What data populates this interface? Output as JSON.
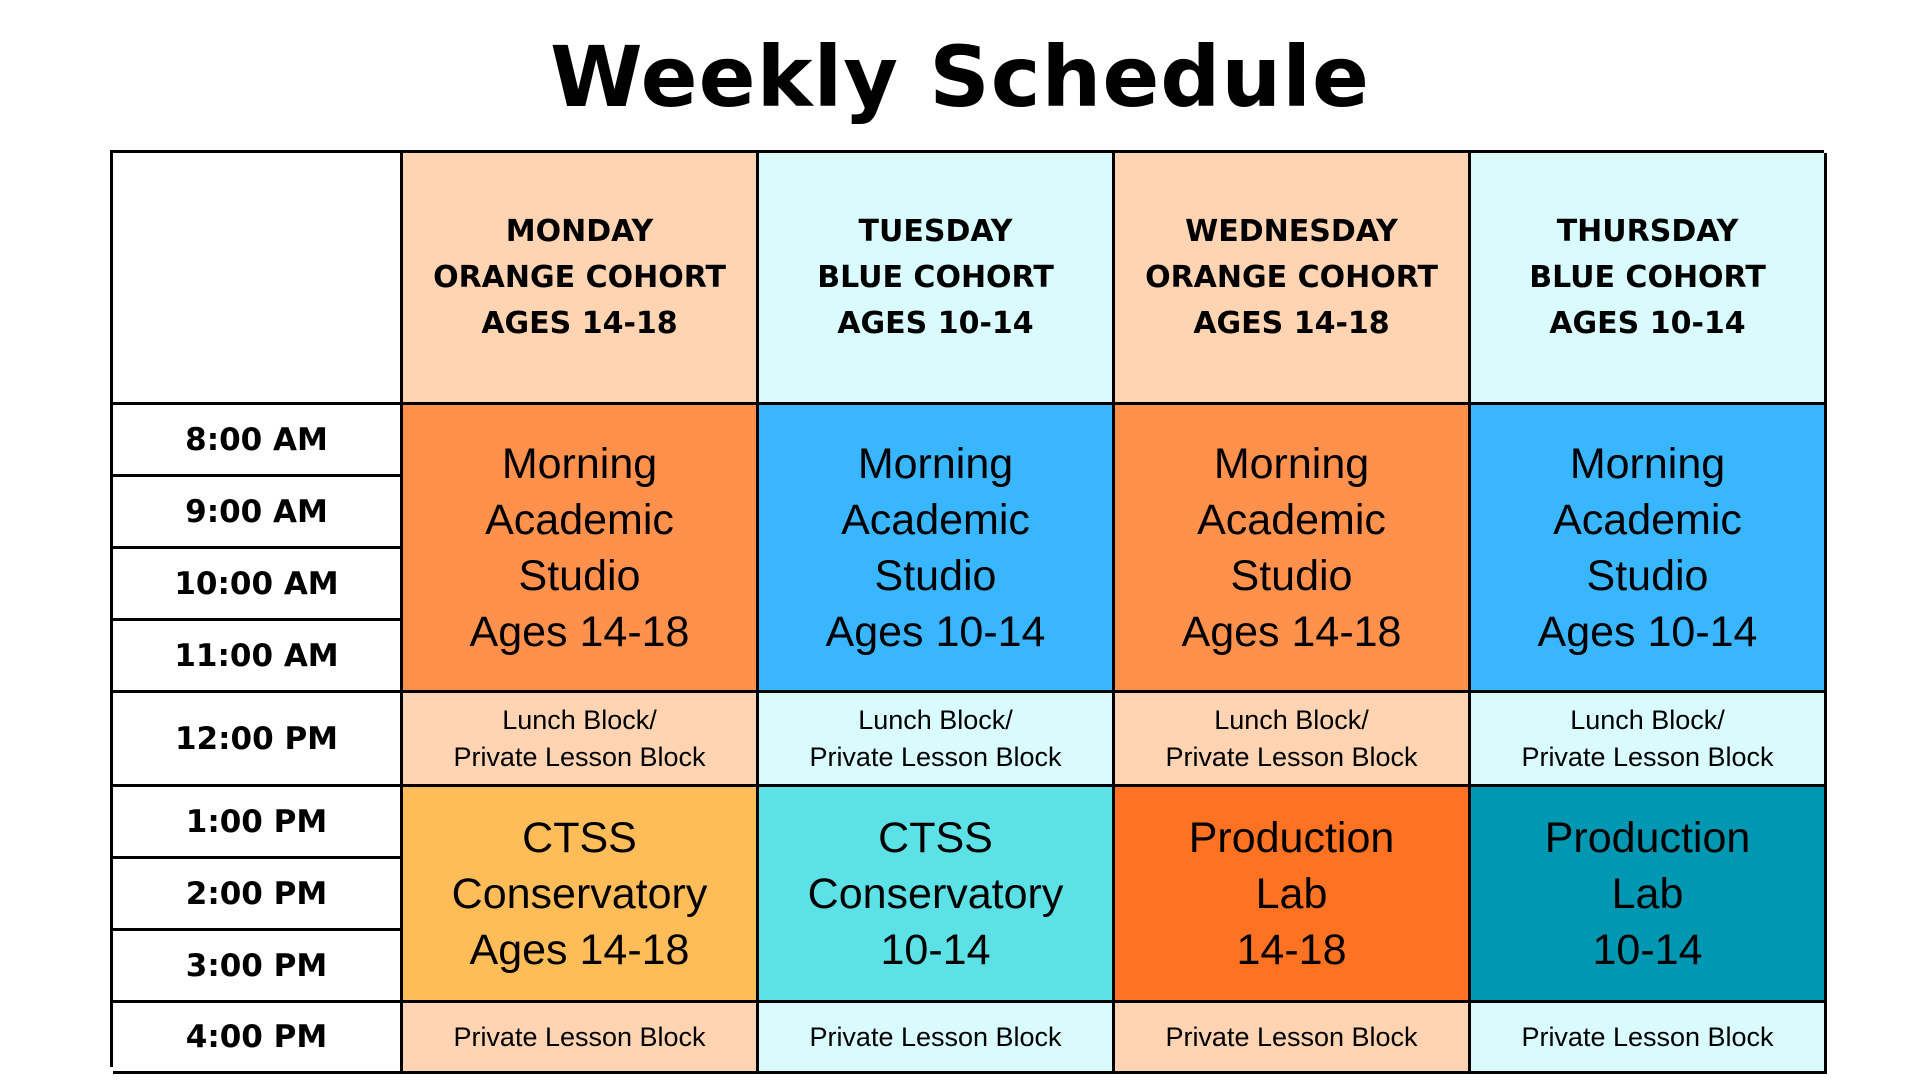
{
  "title": "Weekly Schedule",
  "colors": {
    "orange_light": "#FFD4B3",
    "blue_light": "#D9FBFD",
    "orange_academic": "#FF914D",
    "blue_academic": "#38B6FF",
    "orange_conservatory": "#FFBD59",
    "teal_conservatory": "#5CE1E6",
    "orange_production": "#FF7222",
    "teal_production": "#0097B2",
    "border": "#000000"
  },
  "days": [
    {
      "day": "MONDAY",
      "cohort": "ORANGE COHORT",
      "ages": "AGES 14-18"
    },
    {
      "day": "TUESDAY",
      "cohort": "BLUE COHORT",
      "ages": "AGES 10-14"
    },
    {
      "day": "WEDNESDAY",
      "cohort": "ORANGE COHORT",
      "ages": "AGES 14-18"
    },
    {
      "day": "THURSDAY",
      "cohort": "BLUE COHORT",
      "ages": "AGES 10-14"
    }
  ],
  "times": [
    "8:00 AM",
    "9:00 AM",
    "10:00 AM",
    "11:00 AM",
    "12:00 PM",
    "1:00 PM",
    "2:00 PM",
    "3:00 PM",
    "4:00 PM"
  ],
  "morning": [
    {
      "l1": "Morning",
      "l2": "Academic",
      "l3": "Studio",
      "l4": "Ages 14-18"
    },
    {
      "l1": "Morning",
      "l2": "Academic",
      "l3": "Studio",
      "l4": "Ages 10-14"
    },
    {
      "l1": "Morning",
      "l2": "Academic",
      "l3": "Studio",
      "l4": "Ages 14-18"
    },
    {
      "l1": "Morning",
      "l2": "Academic",
      "l3": "Studio",
      "l4": "Ages 10-14"
    }
  ],
  "lunch": [
    {
      "l1": "Lunch Block/",
      "l2": "Private Lesson Block"
    },
    {
      "l1": "Lunch Block/",
      "l2": "Private Lesson Block"
    },
    {
      "l1": "Lunch Block/",
      "l2": "Private Lesson Block"
    },
    {
      "l1": "Lunch Block/",
      "l2": "Private Lesson Block"
    }
  ],
  "afternoon": [
    {
      "l1": "CTSS",
      "l2": "Conservatory",
      "l3": "Ages 14-18"
    },
    {
      "l1": "CTSS",
      "l2": "Conservatory",
      "l3": "10-14"
    },
    {
      "l1": "Production",
      "l2": "Lab",
      "l3": "14-18"
    },
    {
      "l1": "Production",
      "l2": "Lab",
      "l3": "10-14"
    }
  ],
  "late": [
    "Private Lesson Block",
    "Private Lesson Block",
    "Private Lesson Block",
    "Private Lesson Block"
  ]
}
